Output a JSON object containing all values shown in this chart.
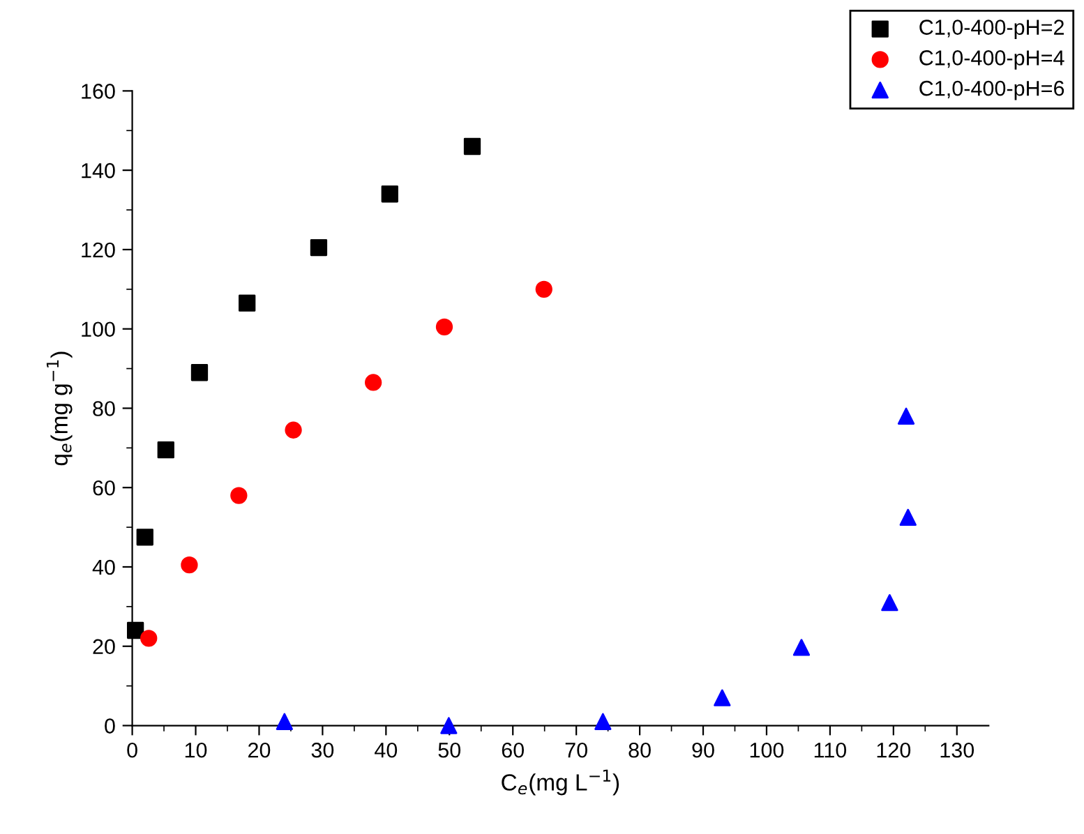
{
  "chart_data": {
    "type": "scatter",
    "xlabel": "C$_{e}$(mg L$^{−1}$)",
    "ylabel": "q$_{e}$(mg g$^{−1}$)",
    "xlim": [
      0,
      135
    ],
    "ylim": [
      0,
      160
    ],
    "xticks": [
      0,
      10,
      20,
      30,
      40,
      50,
      60,
      70,
      80,
      90,
      100,
      110,
      120,
      130
    ],
    "yticks": [
      0,
      20,
      40,
      60,
      80,
      100,
      120,
      140,
      160
    ],
    "legend": "top right",
    "grid": false,
    "series": [
      {
        "name": "C1,0-400-pH=2",
        "color": "#000000",
        "marker": "square",
        "x": [
          0.5,
          2,
          5.3,
          10.6,
          18.1,
          29.4,
          40.6,
          53.6
        ],
        "values": [
          24,
          47.5,
          69.5,
          89,
          106.5,
          120.5,
          134,
          146
        ]
      },
      {
        "name": "C1,0-400-pH=4",
        "color": "#ff0000",
        "marker": "circle",
        "x": [
          2.6,
          9,
          16.8,
          25.4,
          38,
          49.2,
          64.9
        ],
        "values": [
          22,
          40.5,
          58,
          74.5,
          86.5,
          100.5,
          110
        ]
      },
      {
        "name": "C1,0-400-pH=6",
        "color": "#0000ff",
        "marker": "triangle",
        "x": [
          24,
          49.9,
          74.2,
          93,
          105.5,
          119.4,
          122.3,
          122
        ],
        "values": [
          1,
          0,
          1,
          7,
          19.7,
          31,
          52.5,
          78
        ]
      }
    ]
  }
}
